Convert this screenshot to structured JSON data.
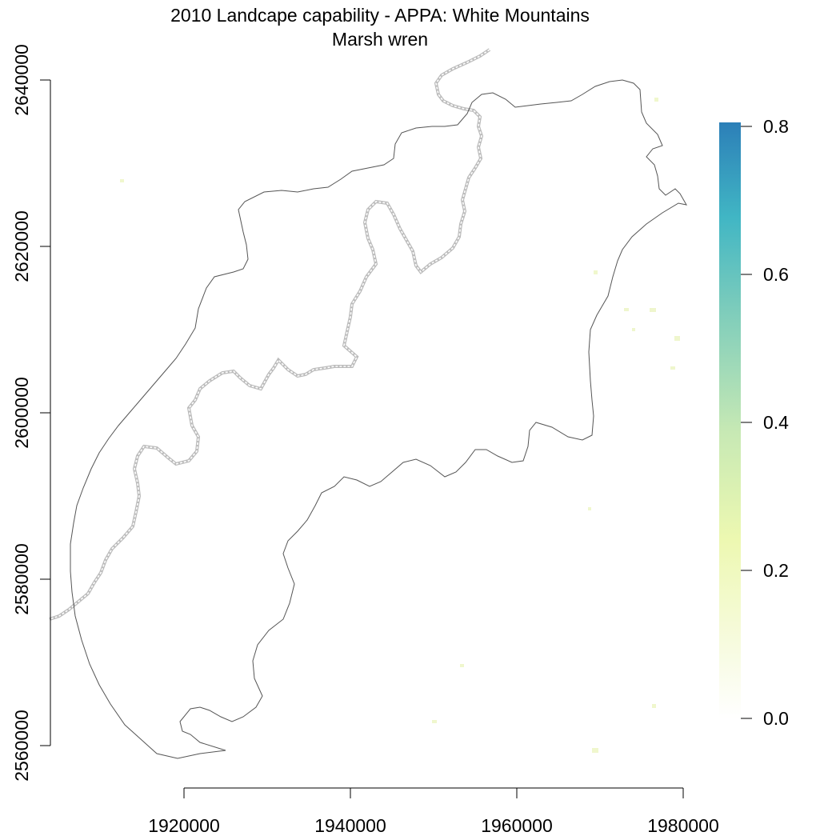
{
  "title": "2010 Landcape capability - APPA: White Mountains",
  "subtitle": "Marsh wren",
  "map": {
    "x_axis": {
      "ticks": [
        "1920000",
        "1940000",
        "1960000",
        "1980000"
      ]
    },
    "y_axis": {
      "ticks": [
        "2640000",
        "2620000",
        "2600000",
        "2580000",
        "2560000"
      ]
    },
    "boundary_colors": {
      "park_outline": "#555555",
      "state_line": "#bbbbbb"
    }
  },
  "legend": {
    "ticks": [
      "0.8",
      "0.6",
      "0.4",
      "0.2",
      "0.0"
    ],
    "range": [
      0.0,
      0.8
    ],
    "colors": [
      "#ffffff",
      "#f7fbe0",
      "#edf8b1",
      "#c7e9b4",
      "#7fcdbb",
      "#41b6c4",
      "#2c7fb8"
    ]
  }
}
